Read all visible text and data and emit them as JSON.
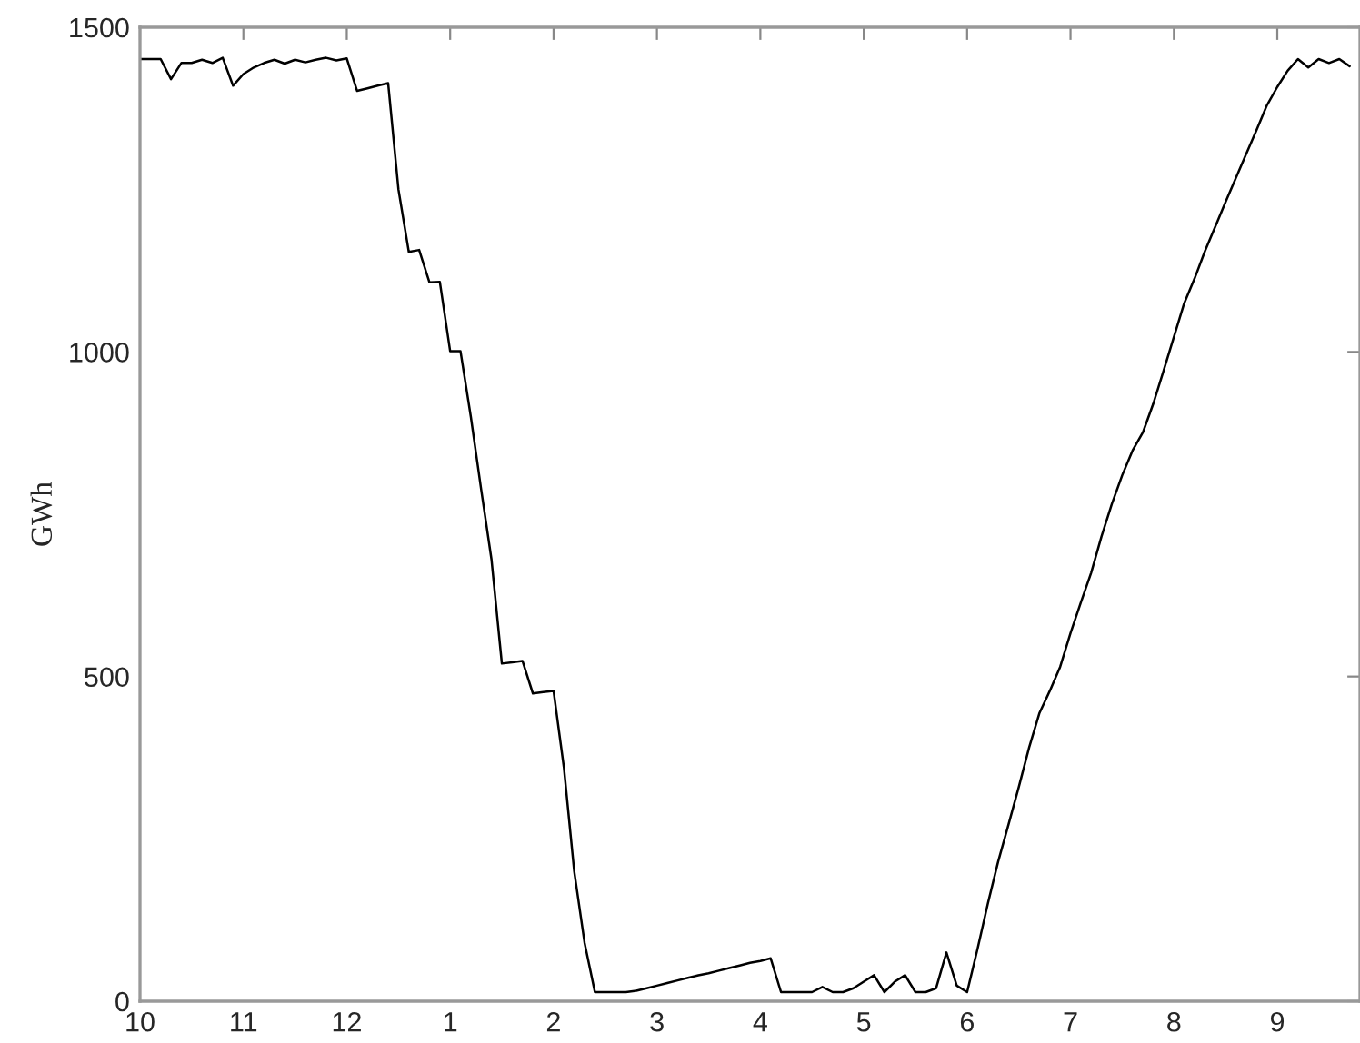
{
  "chart_data": {
    "type": "line",
    "ylabel": "GWh",
    "ylim": [
      0,
      1500
    ],
    "categories": [
      "10",
      null,
      null,
      null,
      null,
      null,
      null,
      null,
      null,
      null,
      "11",
      null,
      null,
      null,
      null,
      null,
      null,
      null,
      null,
      null,
      "12",
      null,
      null,
      null,
      null,
      null,
      null,
      null,
      null,
      null,
      "1",
      null,
      null,
      null,
      null,
      null,
      null,
      null,
      null,
      null,
      "2",
      null,
      null,
      null,
      null,
      null,
      null,
      null,
      null,
      null,
      "3",
      null,
      null,
      null,
      null,
      null,
      null,
      null,
      null,
      null,
      "4",
      null,
      null,
      null,
      null,
      null,
      null,
      null,
      null,
      null,
      "5",
      null,
      null,
      null,
      null,
      null,
      null,
      null,
      null,
      null,
      "6",
      null,
      null,
      null,
      null,
      null,
      null,
      null,
      null,
      null,
      "7",
      null,
      null,
      null,
      null,
      null,
      null,
      null,
      null,
      null,
      "8",
      null,
      null,
      null,
      null,
      null,
      null,
      null,
      null,
      null,
      "9",
      null,
      null,
      null,
      null,
      null,
      null,
      null
    ],
    "yticks": [
      0,
      500,
      1000,
      1500
    ],
    "grid": false,
    "legend": false,
    "marker": "none",
    "line_style": "solid",
    "series": [
      {
        "color": "#000000",
        "values": [
          1451,
          1451,
          1451,
          1420,
          1445,
          1445,
          1450,
          1445,
          1453,
          1410,
          1428,
          1438,
          1445,
          1450,
          1444,
          1450,
          1446,
          1450,
          1453,
          1449,
          1452,
          1402,
          1406,
          1410,
          1414,
          1250,
          1154,
          1157,
          1107,
          1108,
          1001,
          1001,
          900,
          788,
          680,
          520,
          522,
          524,
          474,
          476,
          478,
          360,
          200,
          90,
          14,
          14,
          14,
          14,
          16,
          20,
          24,
          28,
          32,
          36,
          40,
          43,
          47,
          51,
          55,
          59,
          62,
          66,
          14,
          14,
          14,
          14,
          22,
          14,
          14,
          20,
          30,
          40,
          14,
          30,
          40,
          14,
          14,
          20,
          75,
          24,
          14,
          80,
          150,
          215,
          272,
          330,
          391,
          444,
          478,
          515,
          567,
          614,
          660,
          716,
          766,
          810,
          848,
          876,
          920,
          971,
          1023,
          1075,
          1113,
          1155,
          1193,
          1231,
          1268,
          1305,
          1342,
          1380,
          1408,
          1433,
          1451,
          1438,
          1451,
          1445,
          1451,
          1440
        ]
      }
    ]
  }
}
